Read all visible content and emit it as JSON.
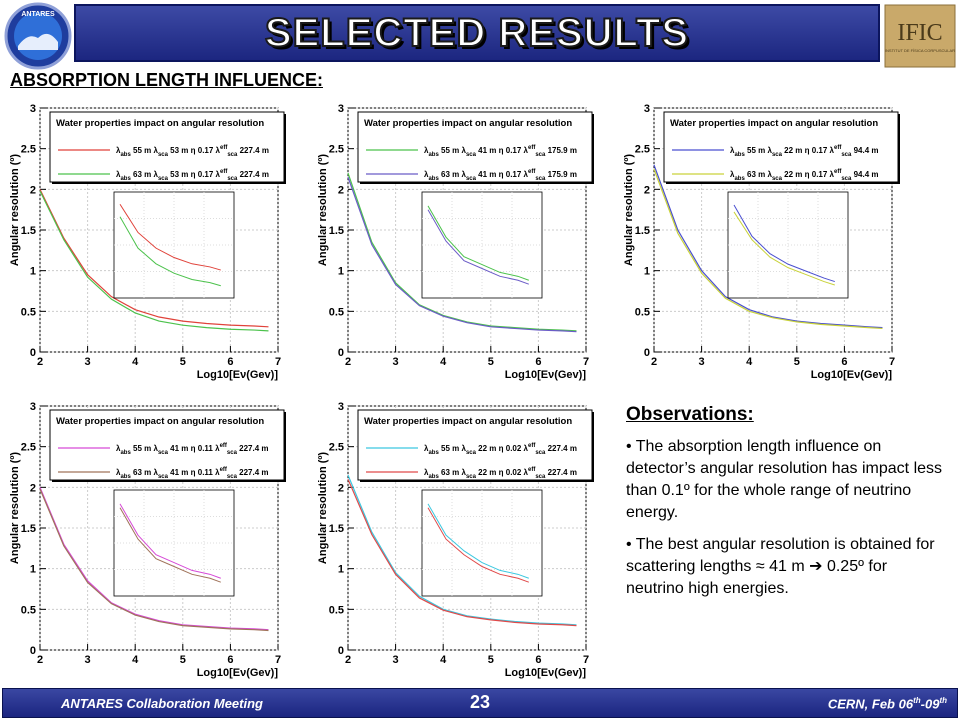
{
  "slide": {
    "title": "SELECTED RESULTS",
    "section": "ABSORPTION LENGTH INFLUENCE:",
    "logo_left": "ANTARES",
    "logo_right": "IFIC",
    "logo_right_sub": "INSTITUT DE FÍSICA CORPUSCULAR"
  },
  "footer": {
    "left": "ANTARES Collaboration Meeting",
    "page": "23",
    "right_prefix": "CERN, Feb 06",
    "right_sup1": "th",
    "right_mid": "-09",
    "right_sup2": "th"
  },
  "observations": {
    "title": "Observations:",
    "items": [
      "• The absorption length influence on detector’s angular resolution has impact less than 0.1º for the whole range of neutrino energy.",
      "• The best angular resolution is obtained for scattering lengths ≈ 41 m ➔ 0.25º for neutrino high energies."
    ]
  },
  "chart_data": [
    {
      "type": "line",
      "legend_title": "Water properties impact on angular resolution",
      "ylabel": "Angular resolution (º)",
      "xlabel": "Log10[Eν(Gev)]",
      "xlim": [
        2,
        7
      ],
      "ylim": [
        0,
        3
      ],
      "xticks": [
        "2",
        "3",
        "4",
        "5",
        "6",
        "7"
      ],
      "yticks": [
        "0",
        "0.5",
        "1",
        "1.5",
        "2",
        "2.5",
        "3"
      ],
      "grid": true,
      "legend_position": "top",
      "series": [
        {
          "name": "λabs 55 m λsca 53 m η 0.17 λeffsca 227.4 m",
          "color": "#e0423a",
          "x": [
            2.0,
            2.5,
            3.0,
            3.5,
            4.0,
            4.5,
            5.0,
            5.5,
            6.0,
            6.5,
            6.8
          ],
          "y": [
            2.0,
            1.4,
            0.95,
            0.68,
            0.52,
            0.43,
            0.38,
            0.35,
            0.33,
            0.32,
            0.31
          ]
        },
        {
          "name": "λabs 63 m λsca 53 m η 0.17 λeffsca 227.4 m",
          "color": "#4cc24c",
          "x": [
            2.0,
            2.5,
            3.0,
            3.5,
            4.0,
            4.5,
            5.0,
            5.5,
            6.0,
            6.5,
            6.8
          ],
          "y": [
            1.98,
            1.38,
            0.92,
            0.65,
            0.48,
            0.38,
            0.33,
            0.3,
            0.28,
            0.27,
            0.26
          ]
        }
      ]
    },
    {
      "type": "line",
      "legend_title": "Water properties impact on angular resolution",
      "ylabel": "Angular resolution (º)",
      "xlabel": "Log10[Eν(Gev)]",
      "xlim": [
        2,
        7
      ],
      "ylim": [
        0,
        3
      ],
      "xticks": [
        "2",
        "3",
        "4",
        "5",
        "6",
        "7"
      ],
      "yticks": [
        "0",
        "0.5",
        "1",
        "1.5",
        "2",
        "2.5",
        "3"
      ],
      "grid": true,
      "legend_position": "top",
      "series": [
        {
          "name": "λabs 55 m λsca 41 m η 0.17 λeffsca 175.9 m",
          "color": "#4cc24c",
          "x": [
            2.0,
            2.5,
            3.0,
            3.5,
            4.0,
            4.5,
            5.0,
            5.5,
            6.0,
            6.5,
            6.8
          ],
          "y": [
            2.2,
            1.35,
            0.85,
            0.58,
            0.45,
            0.37,
            0.32,
            0.3,
            0.28,
            0.27,
            0.26
          ]
        },
        {
          "name": "λabs 63 m λsca 41 m η 0.17 λeffsca 175.9 m",
          "color": "#6b5cc7",
          "x": [
            2.0,
            2.5,
            3.0,
            3.5,
            4.0,
            4.5,
            5.0,
            5.5,
            6.0,
            6.5,
            6.8
          ],
          "y": [
            2.15,
            1.32,
            0.83,
            0.57,
            0.44,
            0.36,
            0.31,
            0.29,
            0.27,
            0.26,
            0.25
          ]
        }
      ]
    },
    {
      "type": "line",
      "legend_title": "Water properties impact on angular resolution",
      "ylabel": "Angular resolution (º)",
      "xlabel": "Log10[Eν(Gev)]",
      "xlim": [
        2,
        7
      ],
      "ylim": [
        0,
        3
      ],
      "xticks": [
        "2",
        "3",
        "4",
        "5",
        "6",
        "7"
      ],
      "yticks": [
        "0",
        "0.5",
        "1",
        "1.5",
        "2",
        "2.5",
        "3"
      ],
      "grid": true,
      "legend_position": "top",
      "series": [
        {
          "name": "λabs 55 m λsca 22 m η 0.17 λeffsca 94.4 m",
          "color": "#4a4fd0",
          "x": [
            2.0,
            2.5,
            3.0,
            3.5,
            4.0,
            4.5,
            5.0,
            5.5,
            6.0,
            6.5,
            6.8
          ],
          "y": [
            2.3,
            1.5,
            1.0,
            0.68,
            0.52,
            0.43,
            0.38,
            0.35,
            0.33,
            0.31,
            0.3
          ]
        },
        {
          "name": "λabs 63 m λsca 22 m η 0.17 λeffsca 94.4 m",
          "color": "#c9d23a",
          "x": [
            2.0,
            2.5,
            3.0,
            3.5,
            4.0,
            4.5,
            5.0,
            5.5,
            6.0,
            6.5,
            6.8
          ],
          "y": [
            2.25,
            1.46,
            0.97,
            0.66,
            0.5,
            0.42,
            0.37,
            0.34,
            0.32,
            0.3,
            0.29
          ]
        }
      ]
    },
    {
      "type": "line",
      "legend_title": "Water properties impact on angular resolution",
      "ylabel": "Angular resolution (º)",
      "xlabel": "Log10[Eν(Gev)]",
      "xlim": [
        2,
        7
      ],
      "ylim": [
        0,
        3
      ],
      "xticks": [
        "2",
        "3",
        "4",
        "5",
        "6",
        "7"
      ],
      "yticks": [
        "0",
        "0.5",
        "1",
        "1.5",
        "2",
        "2.5",
        "3"
      ],
      "grid": true,
      "legend_position": "top",
      "series": [
        {
          "name": "λabs 55 m λsca 41 m η 0.11 λeffsca 227.4 m",
          "color": "#d64ad6",
          "x": [
            2.0,
            2.5,
            3.0,
            3.5,
            4.0,
            4.5,
            5.0,
            5.5,
            6.0,
            6.5,
            6.8
          ],
          "y": [
            2.0,
            1.3,
            0.85,
            0.58,
            0.44,
            0.36,
            0.31,
            0.29,
            0.27,
            0.26,
            0.25
          ]
        },
        {
          "name": "λabs 63 m λsca 41 m η 0.11 λeffsca 227.4 m",
          "color": "#a0735a",
          "x": [
            2.0,
            2.5,
            3.0,
            3.5,
            4.0,
            4.5,
            5.0,
            5.5,
            6.0,
            6.5,
            6.8
          ],
          "y": [
            1.98,
            1.28,
            0.83,
            0.57,
            0.43,
            0.35,
            0.3,
            0.28,
            0.26,
            0.25,
            0.24
          ]
        }
      ]
    },
    {
      "type": "line",
      "legend_title": "Water properties impact on angular resolution",
      "ylabel": "Angular resolution (º)",
      "xlabel": "Log10[Eν(Gev)]",
      "xlim": [
        2,
        7
      ],
      "ylim": [
        0,
        3
      ],
      "xticks": [
        "2",
        "3",
        "4",
        "5",
        "6",
        "7"
      ],
      "yticks": [
        "0",
        "0.5",
        "1",
        "1.5",
        "2",
        "2.5",
        "3"
      ],
      "grid": true,
      "legend_position": "top",
      "series": [
        {
          "name": "λabs 55 m λsca 22 m η 0.02 λeffsca 227.4 m",
          "color": "#3cc8e0",
          "x": [
            2.0,
            2.5,
            3.0,
            3.5,
            4.0,
            4.5,
            5.0,
            5.5,
            6.0,
            6.5,
            6.8
          ],
          "y": [
            2.15,
            1.45,
            0.95,
            0.66,
            0.5,
            0.42,
            0.38,
            0.35,
            0.33,
            0.32,
            0.31
          ]
        },
        {
          "name": "λabs 63 m λsca 22 m η 0.02 λeffsca 227.4 m",
          "color": "#e04a4a",
          "x": [
            2.0,
            2.5,
            3.0,
            3.5,
            4.0,
            4.5,
            5.0,
            5.5,
            6.0,
            6.5,
            6.8
          ],
          "y": [
            2.1,
            1.42,
            0.93,
            0.64,
            0.49,
            0.41,
            0.37,
            0.34,
            0.32,
            0.31,
            0.3
          ]
        }
      ]
    }
  ],
  "legend_entries": [
    [
      {
        "abs": "55 m",
        "sca": "53 m",
        "eta": "0.17",
        "eff": "227.4 m"
      },
      {
        "abs": "63 m",
        "sca": "53 m",
        "eta": "0.17",
        "eff": "227.4 m"
      }
    ],
    [
      {
        "abs": "55 m",
        "sca": "41 m",
        "eta": "0.17",
        "eff": "175.9 m"
      },
      {
        "abs": "63 m",
        "sca": "41 m",
        "eta": "0.17",
        "eff": "175.9 m"
      }
    ],
    [
      {
        "abs": "55 m",
        "sca": "22 m",
        "eta": "0.17",
        "eff": "94.4 m"
      },
      {
        "abs": "63 m",
        "sca": "22 m",
        "eta": "0.17",
        "eff": "94.4 m"
      }
    ],
    [
      {
        "abs": "55 m",
        "sca": "41 m",
        "eta": "0.11",
        "eff": "227.4 m"
      },
      {
        "abs": "63 m",
        "sca": "41 m",
        "eta": "0.11",
        "eff": "227.4 m"
      }
    ],
    [
      {
        "abs": "55 m",
        "sca": "22 m",
        "eta": "0.02",
        "eff": "227.4 m"
      },
      {
        "abs": "63 m",
        "sca": "22 m",
        "eta": "0.02",
        "eff": "227.4 m"
      }
    ]
  ]
}
